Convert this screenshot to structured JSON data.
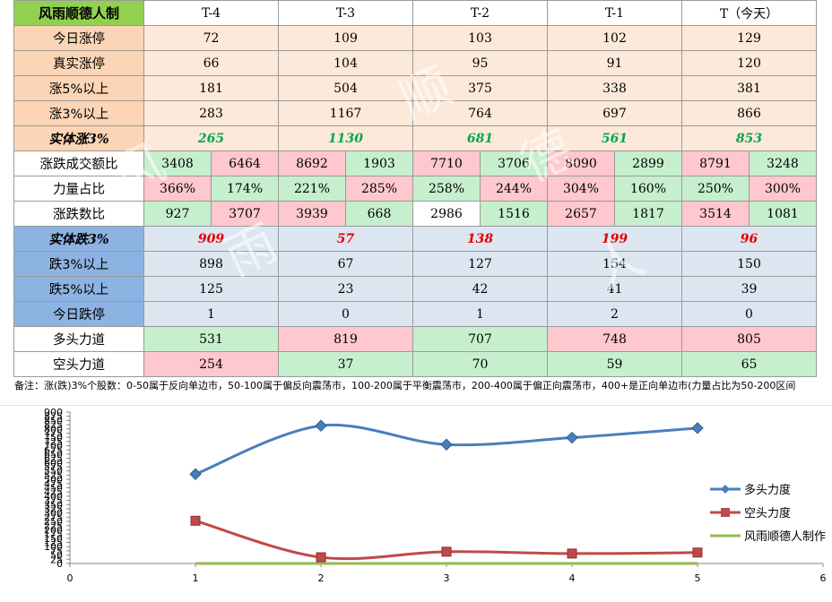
{
  "table": {
    "title": "风雨顺德人制",
    "headers": [
      "T-4",
      "T-3",
      "T-2",
      "T-1",
      "T（今天）"
    ],
    "rows_up": [
      {
        "label": "今日涨停",
        "values": [
          "72",
          "109",
          "103",
          "102",
          "129"
        ]
      },
      {
        "label": "真实涨停",
        "values": [
          "66",
          "104",
          "95",
          "91",
          "120"
        ]
      },
      {
        "label": "涨5%以上",
        "values": [
          "181",
          "504",
          "375",
          "338",
          "381"
        ]
      },
      {
        "label": "涨3%以上",
        "values": [
          "283",
          "1167",
          "764",
          "697",
          "866"
        ]
      }
    ],
    "up_total": {
      "label": "实体涨3%",
      "values": [
        "265",
        "1130",
        "681",
        "561",
        "853"
      ]
    },
    "split_rows": [
      {
        "label": "涨跌成交额比",
        "pairs": [
          [
            "3408",
            "6464"
          ],
          [
            "8692",
            "1903"
          ],
          [
            "7710",
            "3706"
          ],
          [
            "8090",
            "2899"
          ],
          [
            "8791",
            "3248"
          ]
        ],
        "colors": [
          [
            "g",
            "r"
          ],
          [
            "r",
            "g"
          ],
          [
            "r",
            "g"
          ],
          [
            "r",
            "g"
          ],
          [
            "r",
            "g"
          ]
        ]
      },
      {
        "label": "力量占比",
        "pairs": [
          [
            "366%",
            "174%"
          ],
          [
            "221%",
            "285%"
          ],
          [
            "258%",
            "244%"
          ],
          [
            "304%",
            "160%"
          ],
          [
            "250%",
            "300%"
          ]
        ],
        "colors": [
          [
            "r",
            "g"
          ],
          [
            "g",
            "r"
          ],
          [
            "g",
            "r"
          ],
          [
            "r",
            "g"
          ],
          [
            "g",
            "r"
          ]
        ]
      },
      {
        "label": "涨跌数比",
        "pairs": [
          [
            "927",
            "3707"
          ],
          [
            "3939",
            "668"
          ],
          [
            "2986",
            "1516"
          ],
          [
            "2657",
            "1817"
          ],
          [
            "3514",
            "1081"
          ]
        ],
        "colors": [
          [
            "g",
            "r"
          ],
          [
            "r",
            "g"
          ],
          [
            "w",
            "g"
          ],
          [
            "r",
            "g"
          ],
          [
            "r",
            "g"
          ]
        ]
      }
    ],
    "down_total": {
      "label": "实体跌3%",
      "values": [
        "909",
        "57",
        "138",
        "199",
        "96"
      ]
    },
    "rows_down": [
      {
        "label": "跌3%以上",
        "values": [
          "898",
          "67",
          "127",
          "154",
          "150"
        ]
      },
      {
        "label": "跌5%以上",
        "values": [
          "125",
          "23",
          "42",
          "41",
          "39"
        ]
      },
      {
        "label": "今日跌停",
        "values": [
          "1",
          "0",
          "1",
          "2",
          "0"
        ]
      }
    ],
    "bull": {
      "label": "多头力道",
      "values": [
        "531",
        "819",
        "707",
        "748",
        "805"
      ]
    },
    "bear": {
      "label": "空头力道",
      "values": [
        "254",
        "37",
        "70",
        "59",
        "65"
      ]
    }
  },
  "note": "备注：涨(跌)3%个股数：0-50属于反向单边市，50-100属于偏反向震荡市，100-200属于平衡震荡市，200-400属于偏正向震荡市，400+是正向单边市(力量占比为50-200区间",
  "watermark": [
    "风",
    "雨",
    "顺",
    "德",
    "人"
  ],
  "chart_data": {
    "type": "line",
    "x": [
      1,
      2,
      3,
      4,
      5
    ],
    "series": [
      {
        "name": "多头力度",
        "values": [
          531,
          819,
          707,
          748,
          805
        ],
        "color": "#4a7ebb",
        "marker": "diamond"
      },
      {
        "name": "空头力度",
        "values": [
          254,
          37,
          70,
          59,
          65
        ],
        "color": "#be4b48",
        "marker": "square"
      },
      {
        "name": "风雨顺德人制作",
        "values": [
          0,
          0,
          0,
          0,
          0
        ],
        "color": "#98b954",
        "marker": "none"
      }
    ],
    "xlim": [
      0,
      6
    ],
    "ylim": [
      0,
      900
    ],
    "x_ticks": [
      "0",
      "1",
      "2",
      "3",
      "4",
      "5",
      "6"
    ],
    "y_ticks": [
      "0",
      "25",
      "50",
      "75",
      "100",
      "125",
      "150",
      "175",
      "200",
      "225",
      "250",
      "275",
      "300",
      "325",
      "350",
      "375",
      "400",
      "425",
      "450",
      "475",
      "500",
      "525",
      "550",
      "575",
      "600",
      "625",
      "650",
      "675",
      "700",
      "725",
      "750",
      "775",
      "800",
      "825",
      "850",
      "875",
      "900"
    ],
    "legend": "right",
    "grid": false
  }
}
